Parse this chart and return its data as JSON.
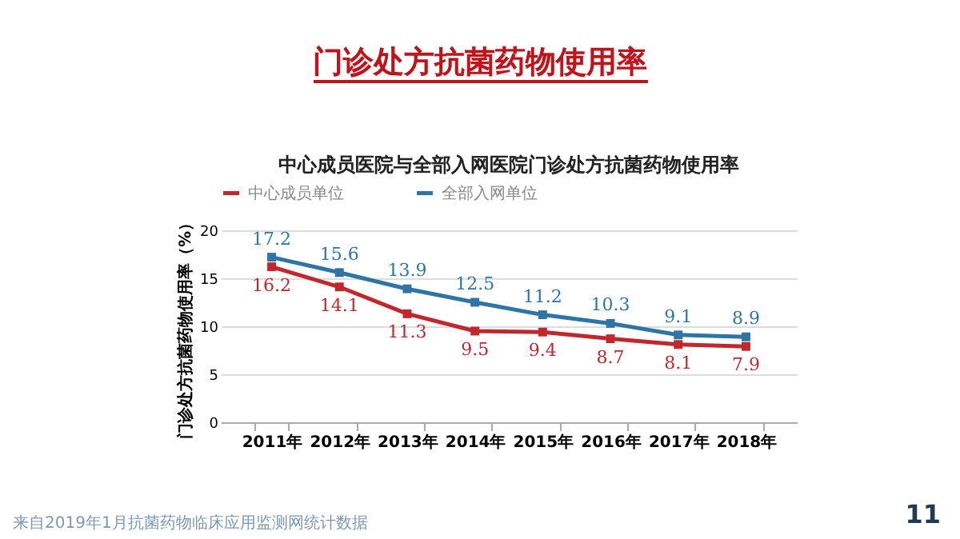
{
  "chart_data": {
    "type": "line",
    "title": "门诊处方抗菌药物使用率",
    "subtitle": "中心成员医院与全部入网医院门诊处方抗菌药物使用率",
    "ylabel": "门诊处方抗菌药物使用率（%）",
    "categories": [
      "2011年",
      "2012年",
      "2013年",
      "2014年",
      "2015年",
      "2016年",
      "2017年",
      "2018年"
    ],
    "series": [
      {
        "name": "中心成员单位",
        "color": "#c0282d",
        "values": [
          16.2,
          14.1,
          11.3,
          9.5,
          9.4,
          8.7,
          8.1,
          7.9
        ]
      },
      {
        "name": "全部入网单位",
        "color": "#2e75a6",
        "values": [
          17.2,
          15.6,
          13.9,
          12.5,
          11.2,
          10.3,
          9.1,
          8.9
        ]
      }
    ],
    "ylim": [
      0,
      20
    ],
    "yticks": [
      0,
      5,
      10,
      15,
      20
    ],
    "grid": "y",
    "legend": "top",
    "marker": "square",
    "line_style": "solid",
    "data_labels": true,
    "annotations": [
      "来自2019年1月抗菌药物临床应用监测网统计数据",
      "11"
    ]
  }
}
